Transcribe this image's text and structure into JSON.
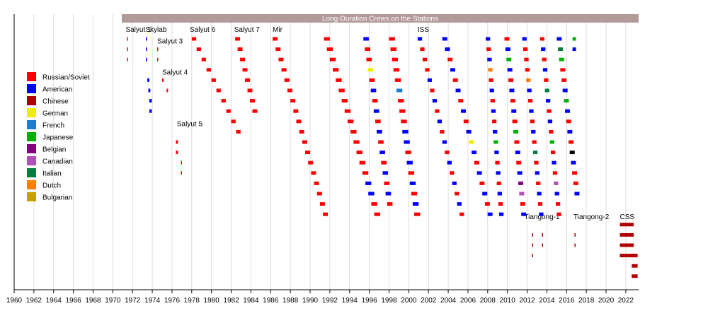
{
  "chart_data": {
    "type": "timeline",
    "title": "Long-Duration Crews on the Stations",
    "title_bar_color": "#b29a98",
    "xlim": [
      1960,
      2023.3
    ],
    "x_ticks": [
      "1960",
      "1962",
      "1964",
      "1966",
      "1968",
      "1970",
      "1972",
      "1974",
      "1976",
      "1978",
      "1980",
      "1982",
      "1984",
      "1986",
      "1988",
      "1990",
      "1992",
      "1994",
      "1996",
      "1998",
      "2000",
      "2002",
      "2004",
      "2006",
      "2008",
      "2010",
      "2012",
      "2014",
      "2016",
      "2018",
      "2020",
      "2022"
    ],
    "grid": "vertical",
    "legend_placement": "left",
    "legend": [
      {
        "label": "Russian/Soviet",
        "color": "#ff0000"
      },
      {
        "label": "American",
        "color": "#0000ff"
      },
      {
        "label": "Chinese",
        "color": "#b00000"
      },
      {
        "label": "German",
        "color": "#eeee00"
      },
      {
        "label": "French",
        "color": "#1a7fd0"
      },
      {
        "label": "Japanese",
        "color": "#00b000"
      },
      {
        "label": "Belgian",
        "color": "#800080"
      },
      {
        "label": "Canadian",
        "color": "#b050b8"
      },
      {
        "label": "Italian",
        "color": "#008040"
      },
      {
        "label": "Dutch",
        "color": "#ff8000"
      },
      {
        "label": "Bulgarian",
        "color": "#c8a000"
      }
    ],
    "stations": [
      {
        "label": "Salyut 1",
        "year": 1971.3,
        "row": 0
      },
      {
        "label": "Skylab",
        "year": 1973.3,
        "row": 0
      },
      {
        "label": "Salyut 3",
        "year": 1974.5,
        "row": 1
      },
      {
        "label": "Salyut 4",
        "year": 1975.0,
        "row": 4
      },
      {
        "label": "Salyut 5",
        "year": 1976.5,
        "row": 9
      },
      {
        "label": "Salyut 6",
        "year": 1977.8,
        "row": 0
      },
      {
        "label": "Salyut 7",
        "year": 1982.3,
        "row": 0
      },
      {
        "label": "Mir",
        "year": 1986.2,
        "row": 0
      },
      {
        "label": "ISS",
        "year": 2000.9,
        "row": 0
      },
      {
        "label": "Tiangong-1",
        "year": 2011.7,
        "row": 18
      },
      {
        "label": "Tiangong-2",
        "year": 2016.7,
        "row": 18
      },
      {
        "label": "CSS",
        "year": 2021.4,
        "row": 18
      }
    ],
    "groups": [
      {
        "n": 3,
        "t0": 1971.45,
        "d": 0.08,
        "i": 0,
        "pal": [
          "r"
        ]
      },
      {
        "n": 3,
        "t0": 1973.35,
        "d": 0.1,
        "i": 0,
        "pal": [
          "b"
        ]
      },
      {
        "n": 2,
        "t0": 1974.5,
        "d": 0.08,
        "i": 0,
        "row0": 1,
        "pal": [
          "r"
        ]
      },
      {
        "n": 2,
        "t0": 1973.5,
        "d": 0.2,
        "i": 0.1,
        "row0": 4,
        "pal": [
          "b"
        ]
      },
      {
        "n": 2,
        "t0": 1975.0,
        "d": 0.15,
        "i": 0.45,
        "row0": 4,
        "pal": [
          "r"
        ]
      },
      {
        "n": 2,
        "t0": 1973.7,
        "d": 0.25,
        "i": 0,
        "row0": 6,
        "pal": [
          "b"
        ]
      },
      {
        "n": 2,
        "t0": 1976.4,
        "d": 0.2,
        "i": 0,
        "row0": 10,
        "pal": [
          "r"
        ]
      },
      {
        "n": 2,
        "t0": 1976.9,
        "d": 0.1,
        "i": 0,
        "row0": 12,
        "pal": [
          "r"
        ]
      },
      {
        "n": 10,
        "t0": 1978.0,
        "d": 0.45,
        "i": 0.5,
        "pal": [
          "r"
        ]
      },
      {
        "n": 8,
        "t0": 1982.4,
        "d": 0.5,
        "i": 0.25,
        "pal": [
          "r"
        ]
      },
      {
        "n": 18,
        "t0": 1986.2,
        "d": 0.5,
        "i": 0.3,
        "pal": [
          "r"
        ]
      },
      {
        "n": 18,
        "t0": 1991.4,
        "d": 0.6,
        "i": 0.3,
        "pal": [
          "r",
          "r",
          "r",
          "r",
          "r",
          "r",
          "r",
          "r",
          "r",
          "r",
          "r",
          "r",
          "r",
          "r",
          "b",
          "b",
          "r",
          "r"
        ]
      },
      {
        "n": 17,
        "t0": 1995.4,
        "d": 0.55,
        "i": 0.15,
        "pal": [
          "b",
          "r",
          "r",
          "y",
          "r",
          "b",
          "r",
          "b",
          "r",
          "b",
          "r",
          "b",
          "r",
          "b",
          "r",
          "b",
          "r"
        ]
      },
      {
        "n": 18,
        "t0": 1998.0,
        "d": 0.6,
        "i": 0.15,
        "pal": [
          "r",
          "r",
          "r",
          "r",
          "r",
          "f",
          "r",
          "r",
          "r",
          "b",
          "b",
          "r",
          "b",
          "r",
          "b",
          "r",
          "b",
          "r"
        ]
      },
      {
        "n": 18,
        "t0": 2000.9,
        "d": 0.45,
        "i": 0.25,
        "pal": [
          "b",
          "r",
          "r",
          "r",
          "b",
          "r",
          "b",
          "r",
          "b",
          "r",
          "b",
          "r",
          "b",
          "r",
          "b",
          "r",
          "b",
          "r"
        ]
      },
      {
        "n": 18,
        "t0": 2003.4,
        "d": 0.5,
        "i": 0.27,
        "pal": [
          "b",
          "b",
          "r",
          "b",
          "r",
          "b",
          "r",
          "b",
          "r",
          "b",
          "y",
          "b",
          "r",
          "b",
          "r",
          "b",
          "r",
          "b"
        ]
      },
      {
        "n": 18,
        "t0": 2007.8,
        "d": 0.45,
        "i": 0.08,
        "pal": [
          "b",
          "r",
          "b",
          "o",
          "r",
          "b",
          "r",
          "b",
          "r",
          "b",
          "g",
          "b",
          "r",
          "b",
          "r",
          "b",
          "r",
          "b"
        ]
      },
      {
        "n": 18,
        "t0": 2009.7,
        "d": 0.5,
        "i": 0.1,
        "pal": [
          "r",
          "b",
          "g",
          "b",
          "r",
          "b",
          "r",
          "b",
          "r",
          "g",
          "r",
          "b",
          "r",
          "b",
          "p",
          "m",
          "r",
          "b"
        ]
      },
      {
        "n": 18,
        "t0": 2011.5,
        "d": 0.45,
        "i": 0.1,
        "pal": [
          "b",
          "r",
          "r",
          "r",
          "o",
          "b",
          "r",
          "b",
          "r",
          "b",
          "r",
          "i",
          "r",
          "b",
          "r",
          "b",
          "r",
          "b"
        ]
      },
      {
        "n": 18,
        "t0": 2013.3,
        "d": 0.45,
        "i": 0.1,
        "pal": [
          "r",
          "b",
          "r",
          "b",
          "r",
          "i",
          "b",
          "r",
          "b",
          "r",
          "j",
          "r",
          "b",
          "r",
          "m",
          "b",
          "r",
          "r"
        ]
      },
      {
        "n": 16,
        "t0": 2015.0,
        "d": 0.5,
        "i": 0.12,
        "pal": [
          "b",
          "i",
          "g",
          "r",
          "r",
          "b",
          "g",
          "b",
          "r",
          "b",
          "r",
          "k",
          "b",
          "r",
          "r",
          "b"
        ]
      },
      {
        "n": 2,
        "t0": 2016.6,
        "d": 0.35,
        "i": 0,
        "pal": [
          "j",
          "b"
        ]
      },
      {
        "n": 3,
        "t0": 2012.5,
        "d": 0.05,
        "i": 0,
        "row0": 19,
        "pal": [
          "c"
        ]
      },
      {
        "n": 2,
        "t0": 2013.5,
        "d": 0.05,
        "i": 0,
        "row0": 19,
        "pal": [
          "c"
        ]
      },
      {
        "n": 2,
        "t0": 2016.8,
        "d": 0.08,
        "i": 0,
        "row0": 19,
        "pal": [
          "c"
        ]
      },
      {
        "n": 4,
        "t0": 2021.4,
        "d": 1.4,
        "i": 0,
        "row0": 18,
        "pal": [
          "c",
          "c",
          "c",
          "c"
        ]
      },
      {
        "n": 3,
        "t0": 2022.6,
        "d": 0.6,
        "i": 0,
        "row0": 21,
        "pal": [
          "c"
        ]
      }
    ]
  }
}
